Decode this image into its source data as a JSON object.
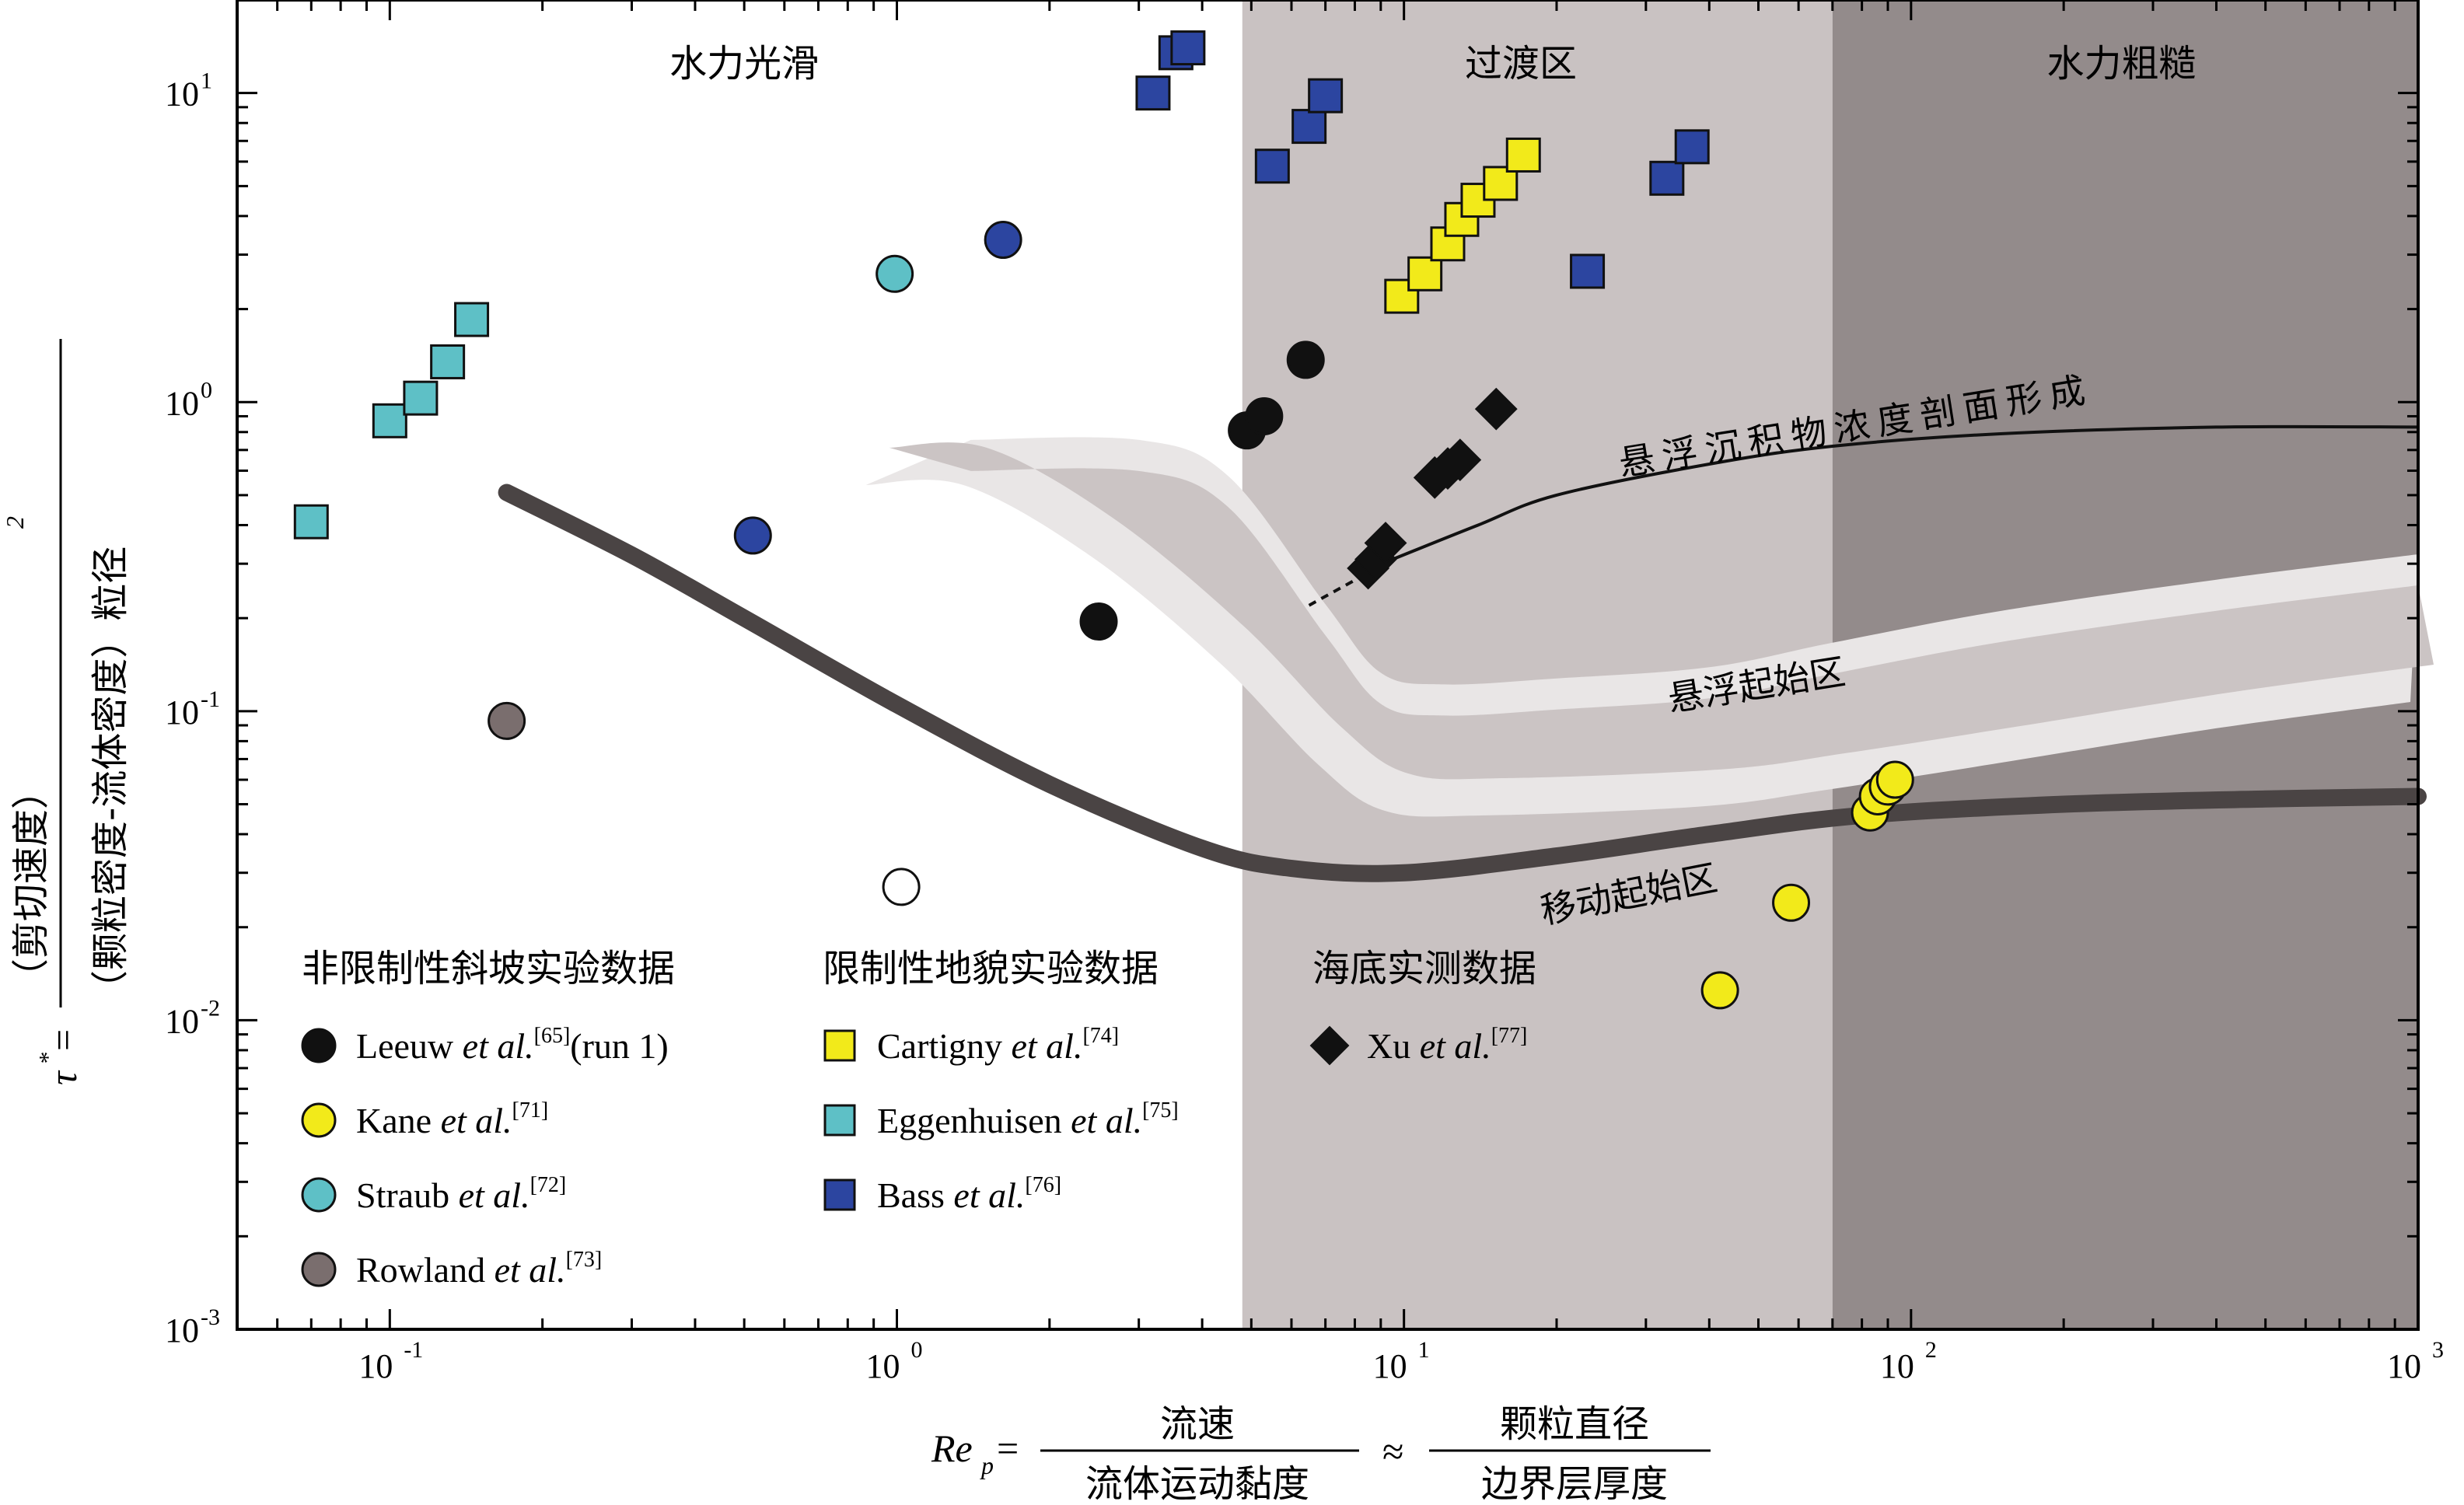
{
  "chart_data": {
    "type": "scatter",
    "x_scale": "log",
    "y_scale": "log",
    "xlim": [
      0.05,
      1000
    ],
    "ylim": [
      0.001,
      20
    ],
    "x_ticks": [
      {
        "value": 0.1,
        "base": "10",
        "exp": "-1"
      },
      {
        "value": 1,
        "base": "10",
        "exp": "0"
      },
      {
        "value": 10,
        "base": "10",
        "exp": "1"
      },
      {
        "value": 100,
        "base": "10",
        "exp": "2"
      },
      {
        "value": 1000,
        "base": "10",
        "exp": "3"
      }
    ],
    "y_ticks": [
      {
        "value": 0.001,
        "base": "10",
        "exp": "-3"
      },
      {
        "value": 0.01,
        "base": "10",
        "exp": "-2"
      },
      {
        "value": 0.1,
        "base": "10",
        "exp": "-1"
      },
      {
        "value": 1,
        "base": "10",
        "exp": "0"
      },
      {
        "value": 10,
        "base": "10",
        "exp": "1"
      }
    ],
    "zones": [
      {
        "label": "水力光滑",
        "x_from": 0.05,
        "x_to": 4.8,
        "color": "#ffffff",
        "label_x": 0.5
      },
      {
        "label": "过渡区",
        "x_from": 4.8,
        "x_to": 70,
        "color": "#c9c2c2",
        "label_x": 17
      },
      {
        "label": "水力粗糙",
        "x_from": 70,
        "x_to": 1000,
        "color": "#938b8b",
        "label_x": 260
      }
    ],
    "x_axis_label": {
      "lhs_main": "Re",
      "lhs_sub": "p",
      "eq": "=",
      "frac1_num": "流速",
      "frac1_den": "流体运动黏度",
      "approx": "≈",
      "frac2_num": "颗粒直径",
      "frac2_den": "边界层厚度"
    },
    "y_axis_label": {
      "lhs": "τ",
      "lhs_sup": "*",
      "eq": "=",
      "numerator": "（剪切速度）",
      "num_sup": "2",
      "denominator": "（颗粒密度-流体密度）粒径"
    },
    "curves": {
      "motion_threshold": {
        "label": "移动起始区",
        "x": [
          0.17,
          0.3,
          0.5,
          1.0,
          2.0,
          4.0,
          6.0,
          10,
          20,
          40,
          80,
          200,
          500,
          1000
        ],
        "y": [
          0.51,
          0.32,
          0.2,
          0.105,
          0.058,
          0.036,
          0.031,
          0.03,
          0.034,
          0.04,
          0.046,
          0.05,
          0.052,
          0.053
        ]
      },
      "suspension_onset": {
        "label": "悬浮起始区",
        "x_upper": [
          1.4,
          3.0,
          4.5,
          7.0,
          9.0,
          12,
          20,
          40,
          70,
          150,
          400,
          1000
        ],
        "y_upper": [
          0.68,
          0.68,
          0.52,
          0.2,
          0.12,
          0.11,
          0.115,
          0.125,
          0.15,
          0.19,
          0.24,
          0.29
        ],
        "x_lower": [
          0.9,
          1.4,
          2.5,
          4.5,
          7.0,
          9.5,
          15,
          40,
          70,
          150,
          400,
          1000
        ],
        "y_lower": [
          0.68,
          0.68,
          0.4,
          0.18,
          0.085,
          0.06,
          0.058,
          0.062,
          0.07,
          0.085,
          0.11,
          0.135
        ]
      },
      "suspended_profile": {
        "label": "悬浮沉积物浓度剖面形成",
        "x": [
          9.5,
          14,
          20,
          40,
          70,
          150,
          400,
          1000
        ],
        "y": [
          0.31,
          0.4,
          0.5,
          0.63,
          0.72,
          0.79,
          0.83,
          0.83
        ],
        "dashed_x": [
          6.5,
          9.5
        ],
        "dashed_y": [
          0.22,
          0.31
        ]
      }
    },
    "legend_groups": [
      {
        "header": "非限制性斜坡实验数据",
        "items": [
          {
            "author": "Leeuw",
            "etal": " et al.",
            "ref": "[65]",
            "suffix": "(run 1)",
            "marker": "circle",
            "fill": "#111111"
          },
          {
            "author": "Kane",
            "etal": " et al.",
            "ref": "[71]",
            "suffix": "",
            "marker": "circle",
            "fill": "#f2ea1a"
          },
          {
            "author": "Straub",
            "etal": " et al.",
            "ref": "[72]",
            "suffix": "",
            "marker": "circle",
            "fill": "#5ec0c6"
          },
          {
            "author": "Rowland",
            "etal": " et al.",
            "ref": "[73]",
            "suffix": "",
            "marker": "circle",
            "fill": "#7a6e6e"
          }
        ]
      },
      {
        "header": "限制性地貌实验数据",
        "items": [
          {
            "author": "Cartigny",
            "etal": " et al.",
            "ref": "[74]",
            "suffix": "",
            "marker": "square",
            "fill": "#f2ea1a"
          },
          {
            "author": "Eggenhuisen",
            "etal": " et al.",
            "ref": "[75]",
            "suffix": "",
            "marker": "square",
            "fill": "#5ec0c6"
          },
          {
            "author": "Bass",
            "etal": " et al.",
            "ref": "[76]",
            "suffix": "",
            "marker": "square",
            "fill": "#2c45a0"
          }
        ]
      },
      {
        "header": "海底实测数据",
        "items": [
          {
            "author": "Xu",
            "etal": " et al.",
            "ref": "[77]",
            "suffix": "",
            "marker": "diamond",
            "fill": "#111111"
          }
        ]
      }
    ],
    "series": [
      {
        "name": "Leeuw et al. (run 1)",
        "marker": "circle",
        "fill": "#111111",
        "points": [
          [
            2.5,
            0.195
          ],
          [
            4.9,
            0.81
          ],
          [
            5.3,
            0.9
          ],
          [
            6.4,
            1.37
          ]
        ]
      },
      {
        "name": "Kane et al.",
        "marker": "circle",
        "fill": "#f2ea1a",
        "points": [
          [
            42,
            0.0125
          ],
          [
            58,
            0.024
          ],
          [
            83,
            0.047
          ],
          [
            86,
            0.053
          ],
          [
            90,
            0.057
          ],
          [
            93,
            0.06
          ]
        ]
      },
      {
        "name": "Straub et al.",
        "marker": "circle",
        "fill": "#5ec0c6",
        "points": [
          [
            0.99,
            2.6
          ]
        ]
      },
      {
        "name": "Rowland et al.",
        "marker": "circle",
        "fill": "#7a6e6e",
        "points": [
          [
            0.17,
            0.093
          ]
        ]
      },
      {
        "name": "unlabelled open circle",
        "marker": "circle",
        "fill": "#ffffff",
        "points": [
          [
            1.02,
            0.027
          ]
        ]
      },
      {
        "name": "Bass et al. (circles)",
        "marker": "circle",
        "fill": "#2c45a0",
        "points": [
          [
            0.52,
            0.37
          ],
          [
            1.62,
            3.35
          ]
        ]
      },
      {
        "name": "Cartigny et al.",
        "marker": "square",
        "fill": "#f2ea1a",
        "points": [
          [
            9.9,
            2.2
          ],
          [
            11,
            2.6
          ],
          [
            12.2,
            3.25
          ],
          [
            13,
            3.9
          ],
          [
            14,
            4.5
          ],
          [
            15.5,
            5.1
          ],
          [
            17.2,
            6.3
          ]
        ]
      },
      {
        "name": "Eggenhuisen et al.",
        "marker": "square",
        "fill": "#5ec0c6",
        "points": [
          [
            0.07,
            0.41
          ],
          [
            0.1,
            0.87
          ],
          [
            0.115,
            1.03
          ],
          [
            0.13,
            1.35
          ],
          [
            0.145,
            1.85
          ]
        ]
      },
      {
        "name": "Bass et al.",
        "marker": "square",
        "fill": "#2c45a0",
        "points": [
          [
            3.2,
            10
          ],
          [
            3.55,
            13.5
          ],
          [
            3.75,
            14
          ],
          [
            5.5,
            5.8
          ],
          [
            6.5,
            7.8
          ],
          [
            7.0,
            9.8
          ],
          [
            23,
            2.65
          ],
          [
            33,
            5.3
          ],
          [
            37,
            6.7
          ]
        ]
      },
      {
        "name": "Xu et al.",
        "marker": "diamond",
        "fill": "#111111",
        "points": [
          [
            8.5,
            0.29
          ],
          [
            8.8,
            0.31
          ],
          [
            9.2,
            0.35
          ],
          [
            11.5,
            0.57
          ],
          [
            12.2,
            0.61
          ],
          [
            12.9,
            0.65
          ],
          [
            15.2,
            0.95
          ]
        ]
      }
    ]
  }
}
